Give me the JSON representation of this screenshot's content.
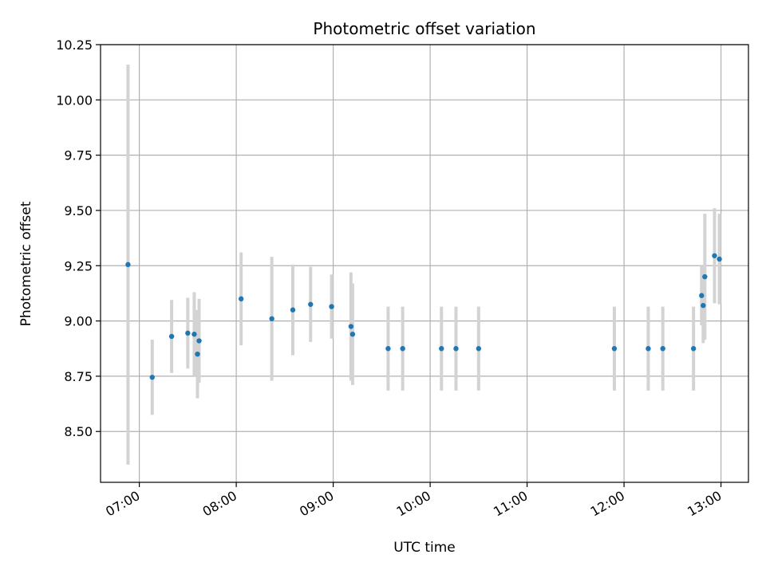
{
  "chart_data": {
    "type": "scatter",
    "title": "Photometric offset variation",
    "xlabel": "UTC time",
    "ylabel": "Photometric offset",
    "x_ticks": [
      "07:00",
      "08:00",
      "09:00",
      "10:00",
      "11:00",
      "12:00",
      "13:00"
    ],
    "y_ticks": [
      "8.50",
      "8.75",
      "9.00",
      "9.25",
      "9.50",
      "9.75",
      "10.00",
      "10.25"
    ],
    "xlim": [
      "06:36",
      "13:17"
    ],
    "ylim": [
      8.27,
      10.25
    ],
    "grid": true,
    "colors": {
      "point": "#1f77b4",
      "errorbar": "#d3d3d3",
      "grid": "#b0b0b0"
    },
    "points": [
      {
        "t": "06:53",
        "y": 9.255,
        "err": 0.905
      },
      {
        "t": "07:08",
        "y": 8.745,
        "err": 0.17
      },
      {
        "t": "07:20",
        "y": 8.93,
        "err": 0.165
      },
      {
        "t": "07:30",
        "y": 8.945,
        "err": 0.16
      },
      {
        "t": "07:34",
        "y": 8.94,
        "err": 0.19
      },
      {
        "t": "07:36",
        "y": 8.85,
        "err": 0.2
      },
      {
        "t": "07:37",
        "y": 8.91,
        "err": 0.19
      },
      {
        "t": "08:03",
        "y": 9.1,
        "err": 0.21
      },
      {
        "t": "08:22",
        "y": 9.01,
        "err": 0.28
      },
      {
        "t": "08:35",
        "y": 9.05,
        "err": 0.205
      },
      {
        "t": "08:46",
        "y": 9.075,
        "err": 0.17
      },
      {
        "t": "08:59",
        "y": 9.065,
        "err": 0.145
      },
      {
        "t": "09:11",
        "y": 8.975,
        "err": 0.245
      },
      {
        "t": "09:12",
        "y": 8.94,
        "err": 0.23
      },
      {
        "t": "09:34",
        "y": 8.875,
        "err": 0.19
      },
      {
        "t": "09:43",
        "y": 8.875,
        "err": 0.19
      },
      {
        "t": "10:07",
        "y": 8.875,
        "err": 0.19
      },
      {
        "t": "10:16",
        "y": 8.875,
        "err": 0.19
      },
      {
        "t": "10:30",
        "y": 8.875,
        "err": 0.19
      },
      {
        "t": "11:54",
        "y": 8.875,
        "err": 0.19
      },
      {
        "t": "12:15",
        "y": 8.875,
        "err": 0.19
      },
      {
        "t": "12:24",
        "y": 8.875,
        "err": 0.19
      },
      {
        "t": "12:43",
        "y": 8.875,
        "err": 0.19
      },
      {
        "t": "12:48",
        "y": 9.115,
        "err": 0.135
      },
      {
        "t": "12:49",
        "y": 9.07,
        "err": 0.17
      },
      {
        "t": "12:50",
        "y": 9.2,
        "err": 0.285
      },
      {
        "t": "12:56",
        "y": 9.295,
        "err": 0.215
      },
      {
        "t": "12:59",
        "y": 9.28,
        "err": 0.205
      }
    ]
  }
}
